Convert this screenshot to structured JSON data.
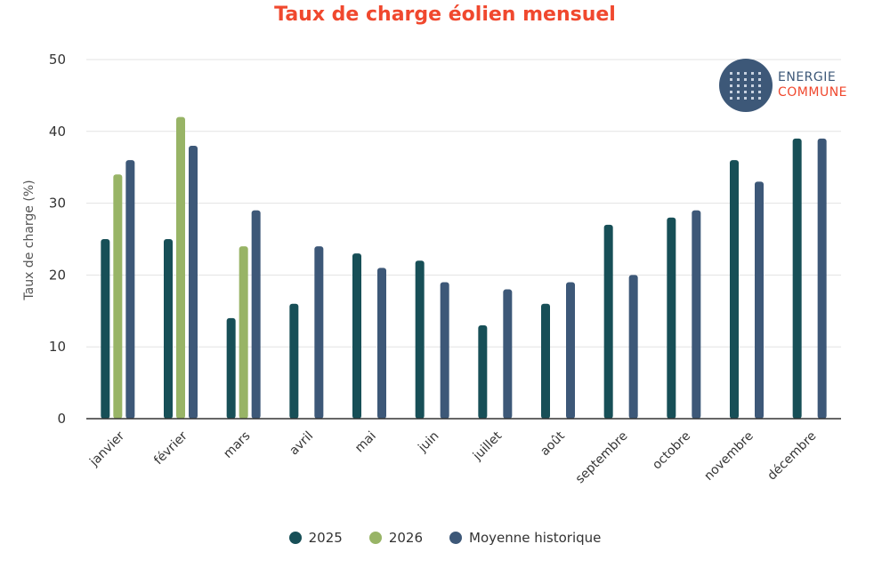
{
  "chart_data": {
    "type": "bar",
    "title": "Taux de charge éolien mensuel",
    "ylabel": "Taux de charge (%)",
    "xlabel": "",
    "ylim": [
      0,
      50
    ],
    "yticks": [
      0,
      10,
      20,
      30,
      40,
      50
    ],
    "grid": true,
    "legend": "bottom",
    "categories": [
      "janvier",
      "février",
      "mars",
      "avril",
      "mai",
      "juin",
      "juillet",
      "août",
      "septembre",
      "octobre",
      "novembre",
      "décembre"
    ],
    "series": [
      {
        "name": "2025",
        "color": "#174f57",
        "values": [
          25,
          25,
          14,
          16,
          23,
          22,
          13,
          16,
          27,
          28,
          36,
          39
        ]
      },
      {
        "name": "2026",
        "color": "#98b466",
        "values": [
          34,
          42,
          24,
          null,
          null,
          null,
          null,
          null,
          null,
          null,
          null,
          null
        ]
      },
      {
        "name": "Moyenne historique",
        "color": "#3d5878",
        "values": [
          36,
          38,
          29,
          24,
          21,
          19,
          18,
          19,
          20,
          29,
          33,
          39
        ]
      }
    ]
  },
  "logo": {
    "line1": "ENERGIE",
    "line2": "COMMUNE"
  }
}
